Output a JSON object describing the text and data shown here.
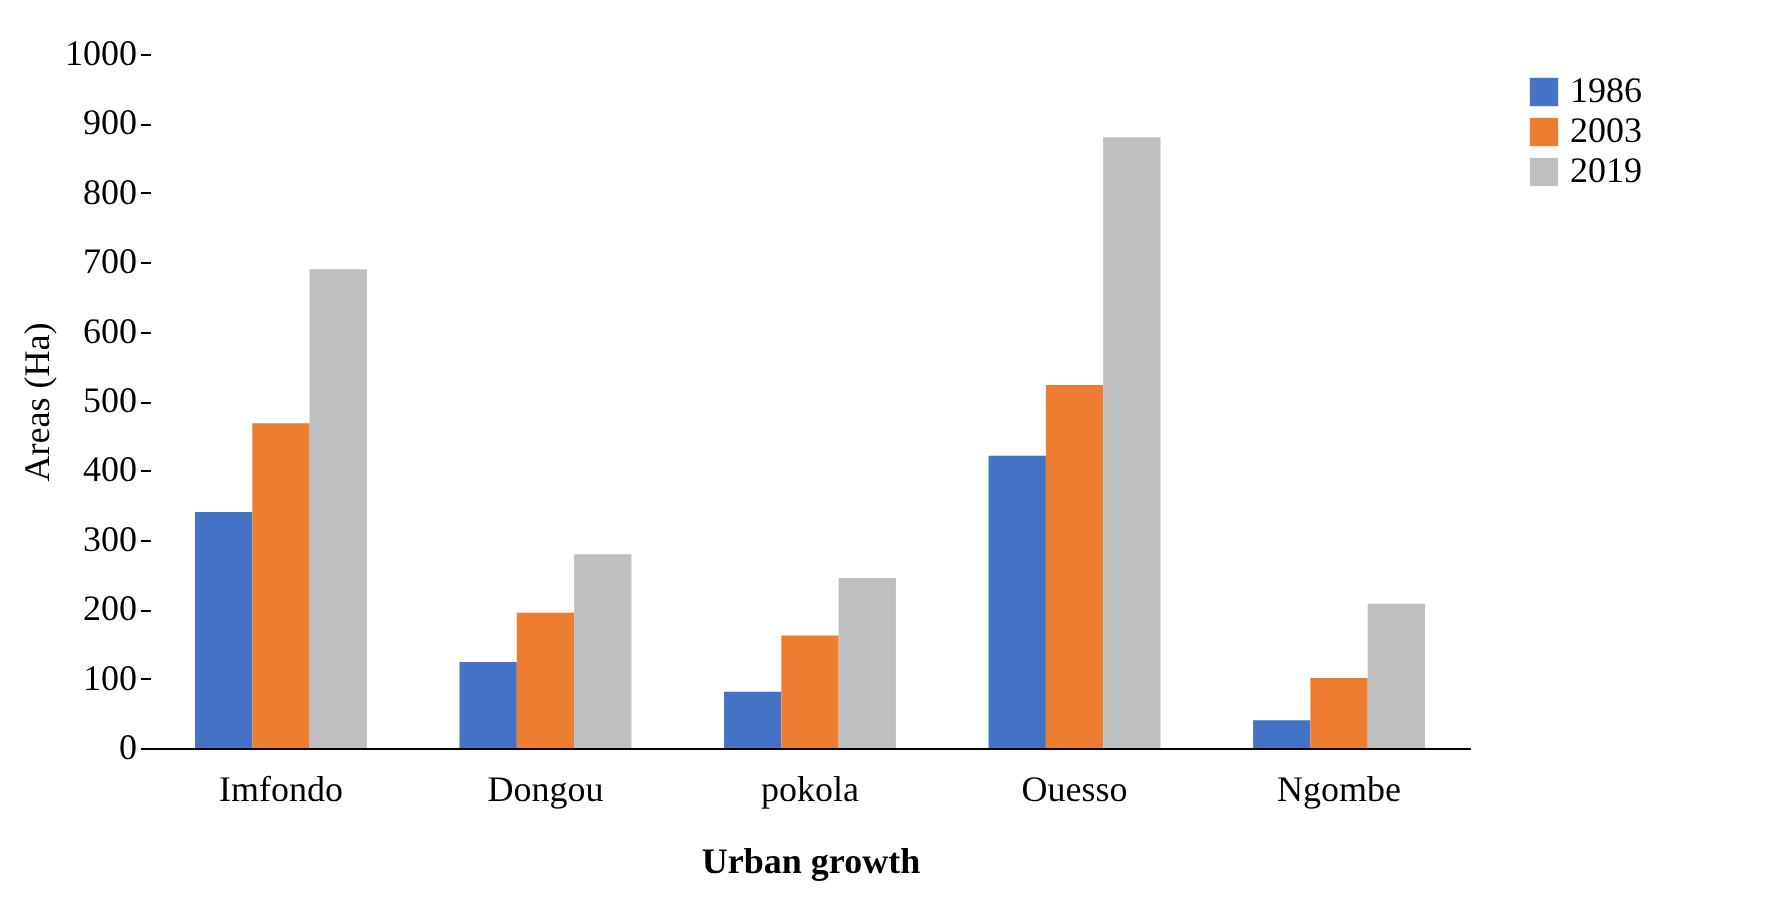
{
  "chart_data": {
    "type": "bar",
    "xlabel": "Urban growth",
    "ylabel": "Areas (Ha)",
    "categories": [
      "Imfondo",
      "Dongou",
      "pokola",
      "Ouesso",
      "Ngombe"
    ],
    "series": [
      {
        "name": "1986",
        "color": "#4472c4",
        "values": [
          340,
          124,
          81,
          421,
          40
        ]
      },
      {
        "name": "2003",
        "color": "#ed7d31",
        "values": [
          468,
          195,
          162,
          523,
          101
        ]
      },
      {
        "name": "2019",
        "color": "#bfbfbf",
        "values": [
          690,
          279,
          245,
          880,
          208
        ]
      }
    ],
    "ylim": [
      0,
      1000
    ],
    "yticks": [
      0,
      100,
      200,
      300,
      400,
      500,
      600,
      700,
      800,
      900,
      1000
    ],
    "grid": false,
    "legend": "right"
  }
}
